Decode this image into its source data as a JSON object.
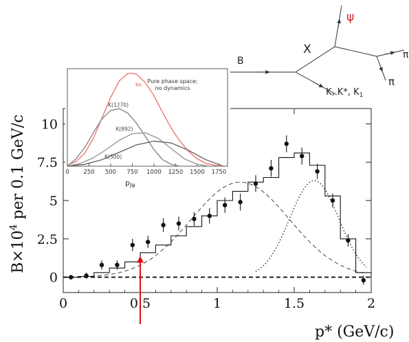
{
  "chart_data": [
    {
      "type": "scatter",
      "role": "main",
      "xlabel": "p* (GeV/c)",
      "ylabel": "B×10⁴ per 0.1 GeV/c",
      "xlim": [
        0,
        2
      ],
      "ylim": [
        -1,
        11
      ],
      "xticks": [
        "0",
        "0.5",
        "1",
        "1.5",
        "2"
      ],
      "yticks": [
        "0",
        "2.5",
        "5",
        "7.5",
        "10"
      ],
      "ytick_values": [
        0,
        2.5,
        5,
        7.5,
        10
      ],
      "xtick_values": [
        0,
        0.5,
        1,
        1.5,
        2
      ],
      "grid": false,
      "points": {
        "x": [
          0.05,
          0.15,
          0.25,
          0.35,
          0.45,
          0.55,
          0.65,
          0.75,
          0.85,
          0.95,
          1.05,
          1.15,
          1.25,
          1.35,
          1.45,
          1.55,
          1.65,
          1.75,
          1.85,
          1.95
        ],
        "y": [
          0.0,
          0.1,
          0.8,
          0.8,
          2.1,
          2.3,
          3.4,
          3.5,
          3.8,
          4.0,
          4.7,
          4.9,
          6.1,
          7.1,
          8.7,
          7.9,
          6.9,
          5.0,
          2.4,
          -0.2
        ],
        "err": [
          0.15,
          0.2,
          0.3,
          0.3,
          0.4,
          0.4,
          0.45,
          0.45,
          0.45,
          0.5,
          0.5,
          0.55,
          0.55,
          0.55,
          0.55,
          0.55,
          0.5,
          0.45,
          0.4,
          0.3
        ]
      },
      "histogram": {
        "edges": [
          0.0,
          0.1,
          0.2,
          0.3,
          0.4,
          0.5,
          0.6,
          0.7,
          0.8,
          0.9,
          1.0,
          1.1,
          1.2,
          1.3,
          1.4,
          1.5,
          1.6,
          1.7,
          1.8,
          1.9,
          2.0
        ],
        "values": [
          0.0,
          0.05,
          0.3,
          0.6,
          1.0,
          1.6,
          2.1,
          2.7,
          3.3,
          4.0,
          5.0,
          5.6,
          6.2,
          6.5,
          7.8,
          8.1,
          7.3,
          5.3,
          2.5,
          0.3
        ]
      },
      "annotation_arrow_x": 0.5,
      "arrow_color": "#dd1111"
    },
    {
      "type": "line",
      "role": "inset",
      "xlabel": "p_Jψ",
      "xlim": [
        0,
        1850
      ],
      "ylim": [
        0,
        1.05
      ],
      "xticks": [
        "0",
        "250",
        "500",
        "750",
        "1000",
        "1250",
        "1500",
        "1750"
      ],
      "xtick_values": [
        0,
        250,
        500,
        750,
        1000,
        1250,
        1500,
        1750
      ],
      "annotation": [
        "Pure phase space;",
        "no dynamics"
      ],
      "series": [
        {
          "name": "Tot.",
          "color": "#ee7777",
          "x": [
            0,
            100,
            200,
            300,
            400,
            500,
            600,
            700,
            750,
            800,
            900,
            1000,
            1100,
            1200,
            1300,
            1400,
            1500,
            1600,
            1700,
            1800
          ],
          "y": [
            0.01,
            0.05,
            0.14,
            0.3,
            0.52,
            0.74,
            0.92,
            1.0,
            1.0,
            0.99,
            0.9,
            0.76,
            0.58,
            0.41,
            0.27,
            0.16,
            0.08,
            0.03,
            0.01,
            0.0
          ]
        },
        {
          "name": "K(1270)",
          "color": "#888888",
          "x": [
            0,
            100,
            200,
            300,
            400,
            500,
            600,
            700,
            800,
            900,
            1000,
            1100,
            1200,
            1300
          ],
          "y": [
            0.0,
            0.08,
            0.2,
            0.36,
            0.51,
            0.6,
            0.62,
            0.57,
            0.46,
            0.32,
            0.18,
            0.07,
            0.02,
            0.0
          ]
        },
        {
          "name": "K(892)",
          "color": "#999999",
          "x": [
            0,
            150,
            300,
            450,
            600,
            750,
            900,
            1050,
            1200,
            1350,
            1500,
            1650
          ],
          "y": [
            0.0,
            0.03,
            0.09,
            0.18,
            0.28,
            0.35,
            0.36,
            0.3,
            0.19,
            0.08,
            0.02,
            0.0
          ]
        },
        {
          "name": "K(500)",
          "color": "#666666",
          "x": [
            0,
            200,
            400,
            600,
            800,
            1000,
            1200,
            1400,
            1600,
            1800
          ],
          "y": [
            0.0,
            0.02,
            0.07,
            0.15,
            0.23,
            0.27,
            0.25,
            0.17,
            0.07,
            0.0
          ]
        }
      ]
    }
  ],
  "diagram": {
    "b_label": "B",
    "x_label": "X",
    "psi_label": "ψ",
    "pi_label": "π",
    "k_label": "K, K*, K",
    "k_sub": "1",
    "psi_color": "#cc2222",
    "edge_label_partial": "π"
  }
}
